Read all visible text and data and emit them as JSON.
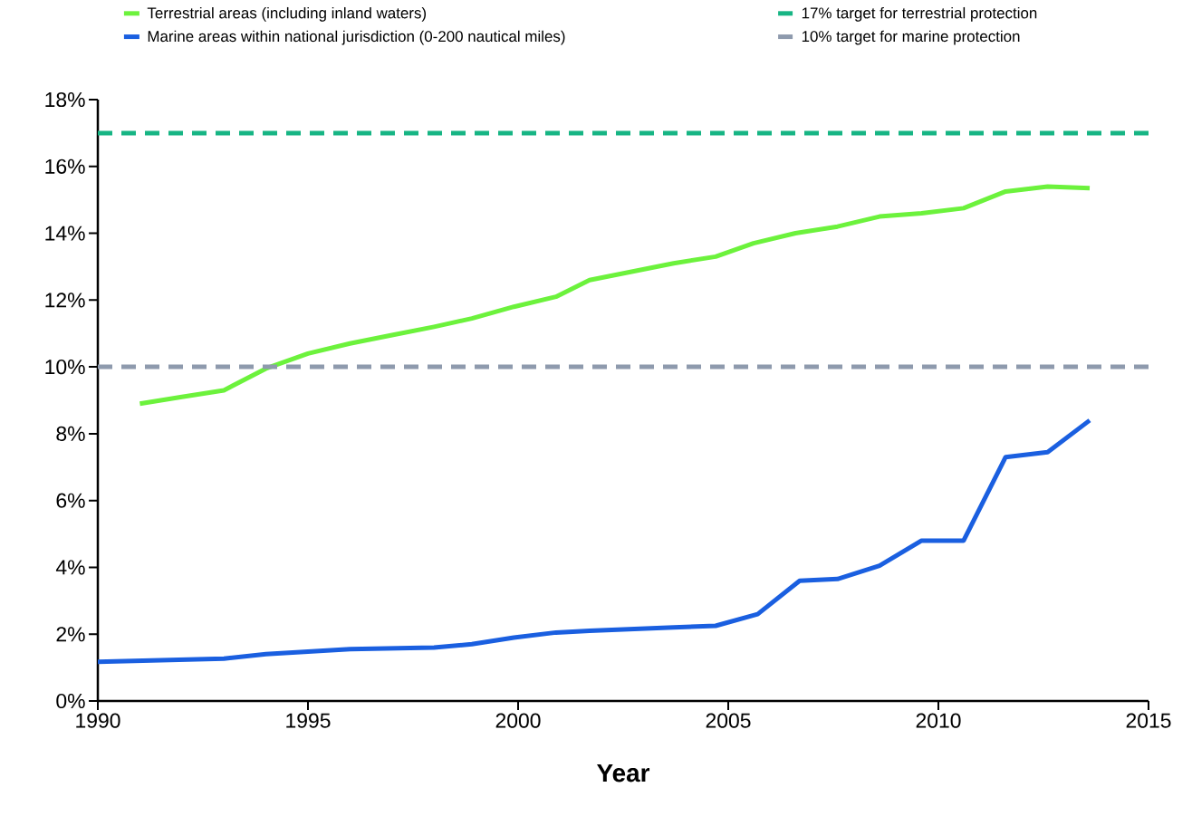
{
  "chart_data": {
    "type": "line",
    "xlabel": "Year",
    "xlim": [
      1990,
      2015
    ],
    "xticks": [
      1990,
      1995,
      2000,
      2005,
      2010,
      2015
    ],
    "ylim": [
      0,
      18
    ],
    "yticks": [
      {
        "value": 0,
        "label": "0%"
      },
      {
        "value": 2,
        "label": "2%"
      },
      {
        "value": 4,
        "label": "4%"
      },
      {
        "value": 6,
        "label": "6%"
      },
      {
        "value": 8,
        "label": "8%"
      },
      {
        "value": 10,
        "label": "10%"
      },
      {
        "value": 12,
        "label": "12%"
      },
      {
        "value": 14,
        "label": "14%"
      },
      {
        "value": 16,
        "label": "16%"
      },
      {
        "value": 18,
        "label": "18%"
      }
    ],
    "series": [
      {
        "name": "Terrestrial areas (including inland waters)",
        "color": "#6cf23c",
        "x": [
          1991.0,
          1992.0,
          1993.0,
          1994.0,
          1995.0,
          1996.0,
          1997.0,
          1998.0,
          1998.9,
          1999.9,
          2000.9,
          2001.7,
          2002.7,
          2003.7,
          2004.7,
          2005.6,
          2006.6,
          2007.6,
          2008.6,
          2009.6,
          2010.6,
          2011.6,
          2012.6,
          2013.6
        ],
        "values": [
          8.9,
          9.1,
          9.3,
          9.95,
          10.4,
          10.7,
          10.95,
          11.2,
          11.45,
          11.8,
          12.1,
          12.6,
          12.85,
          13.1,
          13.3,
          13.7,
          14.0,
          14.2,
          14.5,
          14.6,
          14.75,
          15.25,
          15.4,
          15.35
        ]
      },
      {
        "name": "Marine areas within national jurisdiction (0-200 nautical miles)",
        "color": "#1a5fe0",
        "x": [
          1990.0,
          1993.0,
          1994.0,
          1996.0,
          1998.0,
          1998.9,
          1999.9,
          2000.9,
          2001.7,
          2003.7,
          2004.7,
          2005.7,
          2006.7,
          2007.6,
          2008.6,
          2009.6,
          2010.6,
          2011.6,
          2012.6,
          2013.6
        ],
        "values": [
          1.17,
          1.27,
          1.4,
          1.55,
          1.6,
          1.7,
          1.9,
          2.05,
          2.1,
          2.2,
          2.25,
          2.6,
          3.6,
          3.65,
          4.05,
          4.8,
          4.8,
          7.3,
          7.45,
          8.4
        ]
      }
    ],
    "ref_lines": [
      {
        "axis": "y",
        "value": 17,
        "label": "17% target for terrestrial protection",
        "color": "#17b584",
        "line_style": "dashed"
      },
      {
        "axis": "y",
        "value": 10,
        "label": "10% target for marine protection",
        "color": "#8e9aad",
        "line_style": "dashed"
      }
    ],
    "legend": "top",
    "grid": false,
    "marker": "none",
    "line_style": "solid"
  }
}
